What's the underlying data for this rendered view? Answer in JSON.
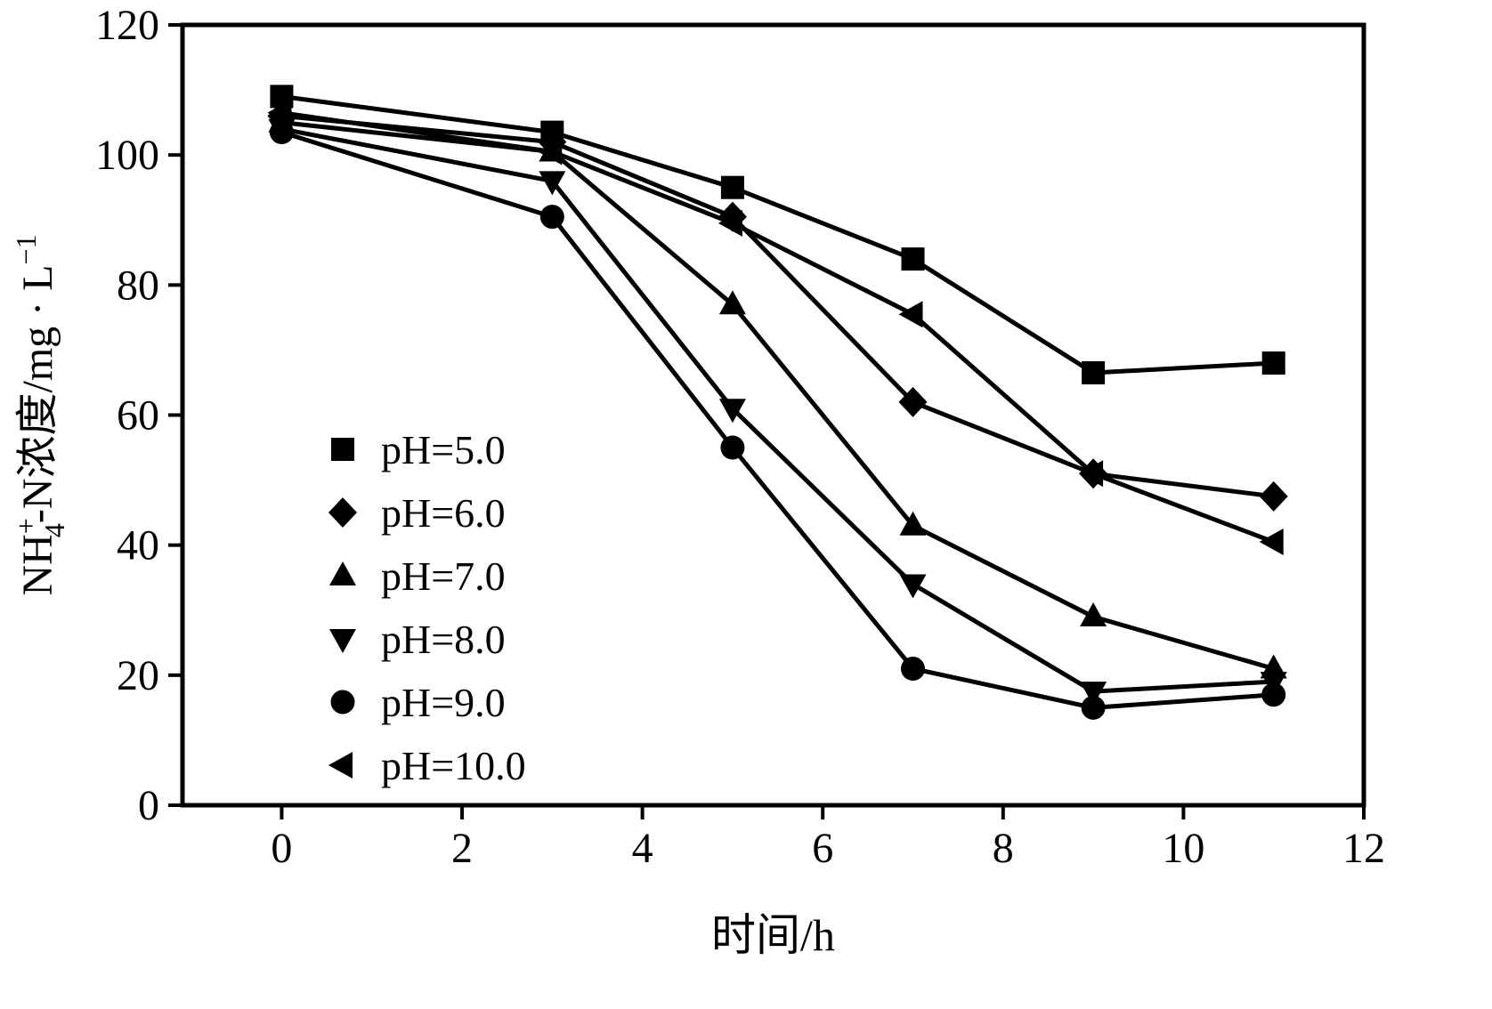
{
  "figure": {
    "background": "#ffffff",
    "ink": "#000000"
  },
  "chart_data": {
    "type": "line",
    "title": "",
    "xlabel": "时间/h",
    "ylabel": "NH₄⁺-N浓度/mg·L⁻¹",
    "ylabel_parts": [
      {
        "text": "NH",
        "style": "base"
      },
      {
        "text": "+",
        "style": "sup"
      },
      {
        "text": "4",
        "style": "under"
      },
      {
        "text": "-N浓度/mg · L",
        "style": "base"
      },
      {
        "text": "−1",
        "style": "sup"
      }
    ],
    "x": [
      0,
      3,
      5,
      7,
      9,
      11
    ],
    "xlim": [
      -1.1,
      12
    ],
    "ylim": [
      0,
      120
    ],
    "x_ticks": [
      0,
      2,
      4,
      6,
      8,
      10,
      12
    ],
    "y_ticks": [
      0,
      20,
      40,
      60,
      80,
      100,
      120
    ],
    "grid": false,
    "legend_position": "inside-left-middle",
    "series": [
      {
        "name": "pH=5.0",
        "marker": "square",
        "color": "#000000",
        "values": [
          109,
          103.5,
          95,
          84,
          66.5,
          68
        ]
      },
      {
        "name": "pH=6.0",
        "marker": "diamond",
        "color": "#000000",
        "values": [
          106,
          102,
          90.5,
          62,
          51,
          47.5
        ]
      },
      {
        "name": "pH=7.0",
        "marker": "triangle-up",
        "color": "#000000",
        "values": [
          105,
          100.5,
          77,
          43,
          29,
          21
        ]
      },
      {
        "name": "pH=8.0",
        "marker": "triangle-down",
        "color": "#000000",
        "values": [
          104,
          96,
          61,
          34,
          17.5,
          19
        ]
      },
      {
        "name": "pH=9.0",
        "marker": "circle",
        "color": "#000000",
        "values": [
          103.5,
          90.5,
          55,
          21,
          15,
          17
        ]
      },
      {
        "name": "pH=10.0",
        "marker": "triangle-left",
        "color": "#000000",
        "values": [
          106.5,
          100.5,
          89.5,
          75.5,
          51,
          40.5
        ]
      }
    ]
  }
}
